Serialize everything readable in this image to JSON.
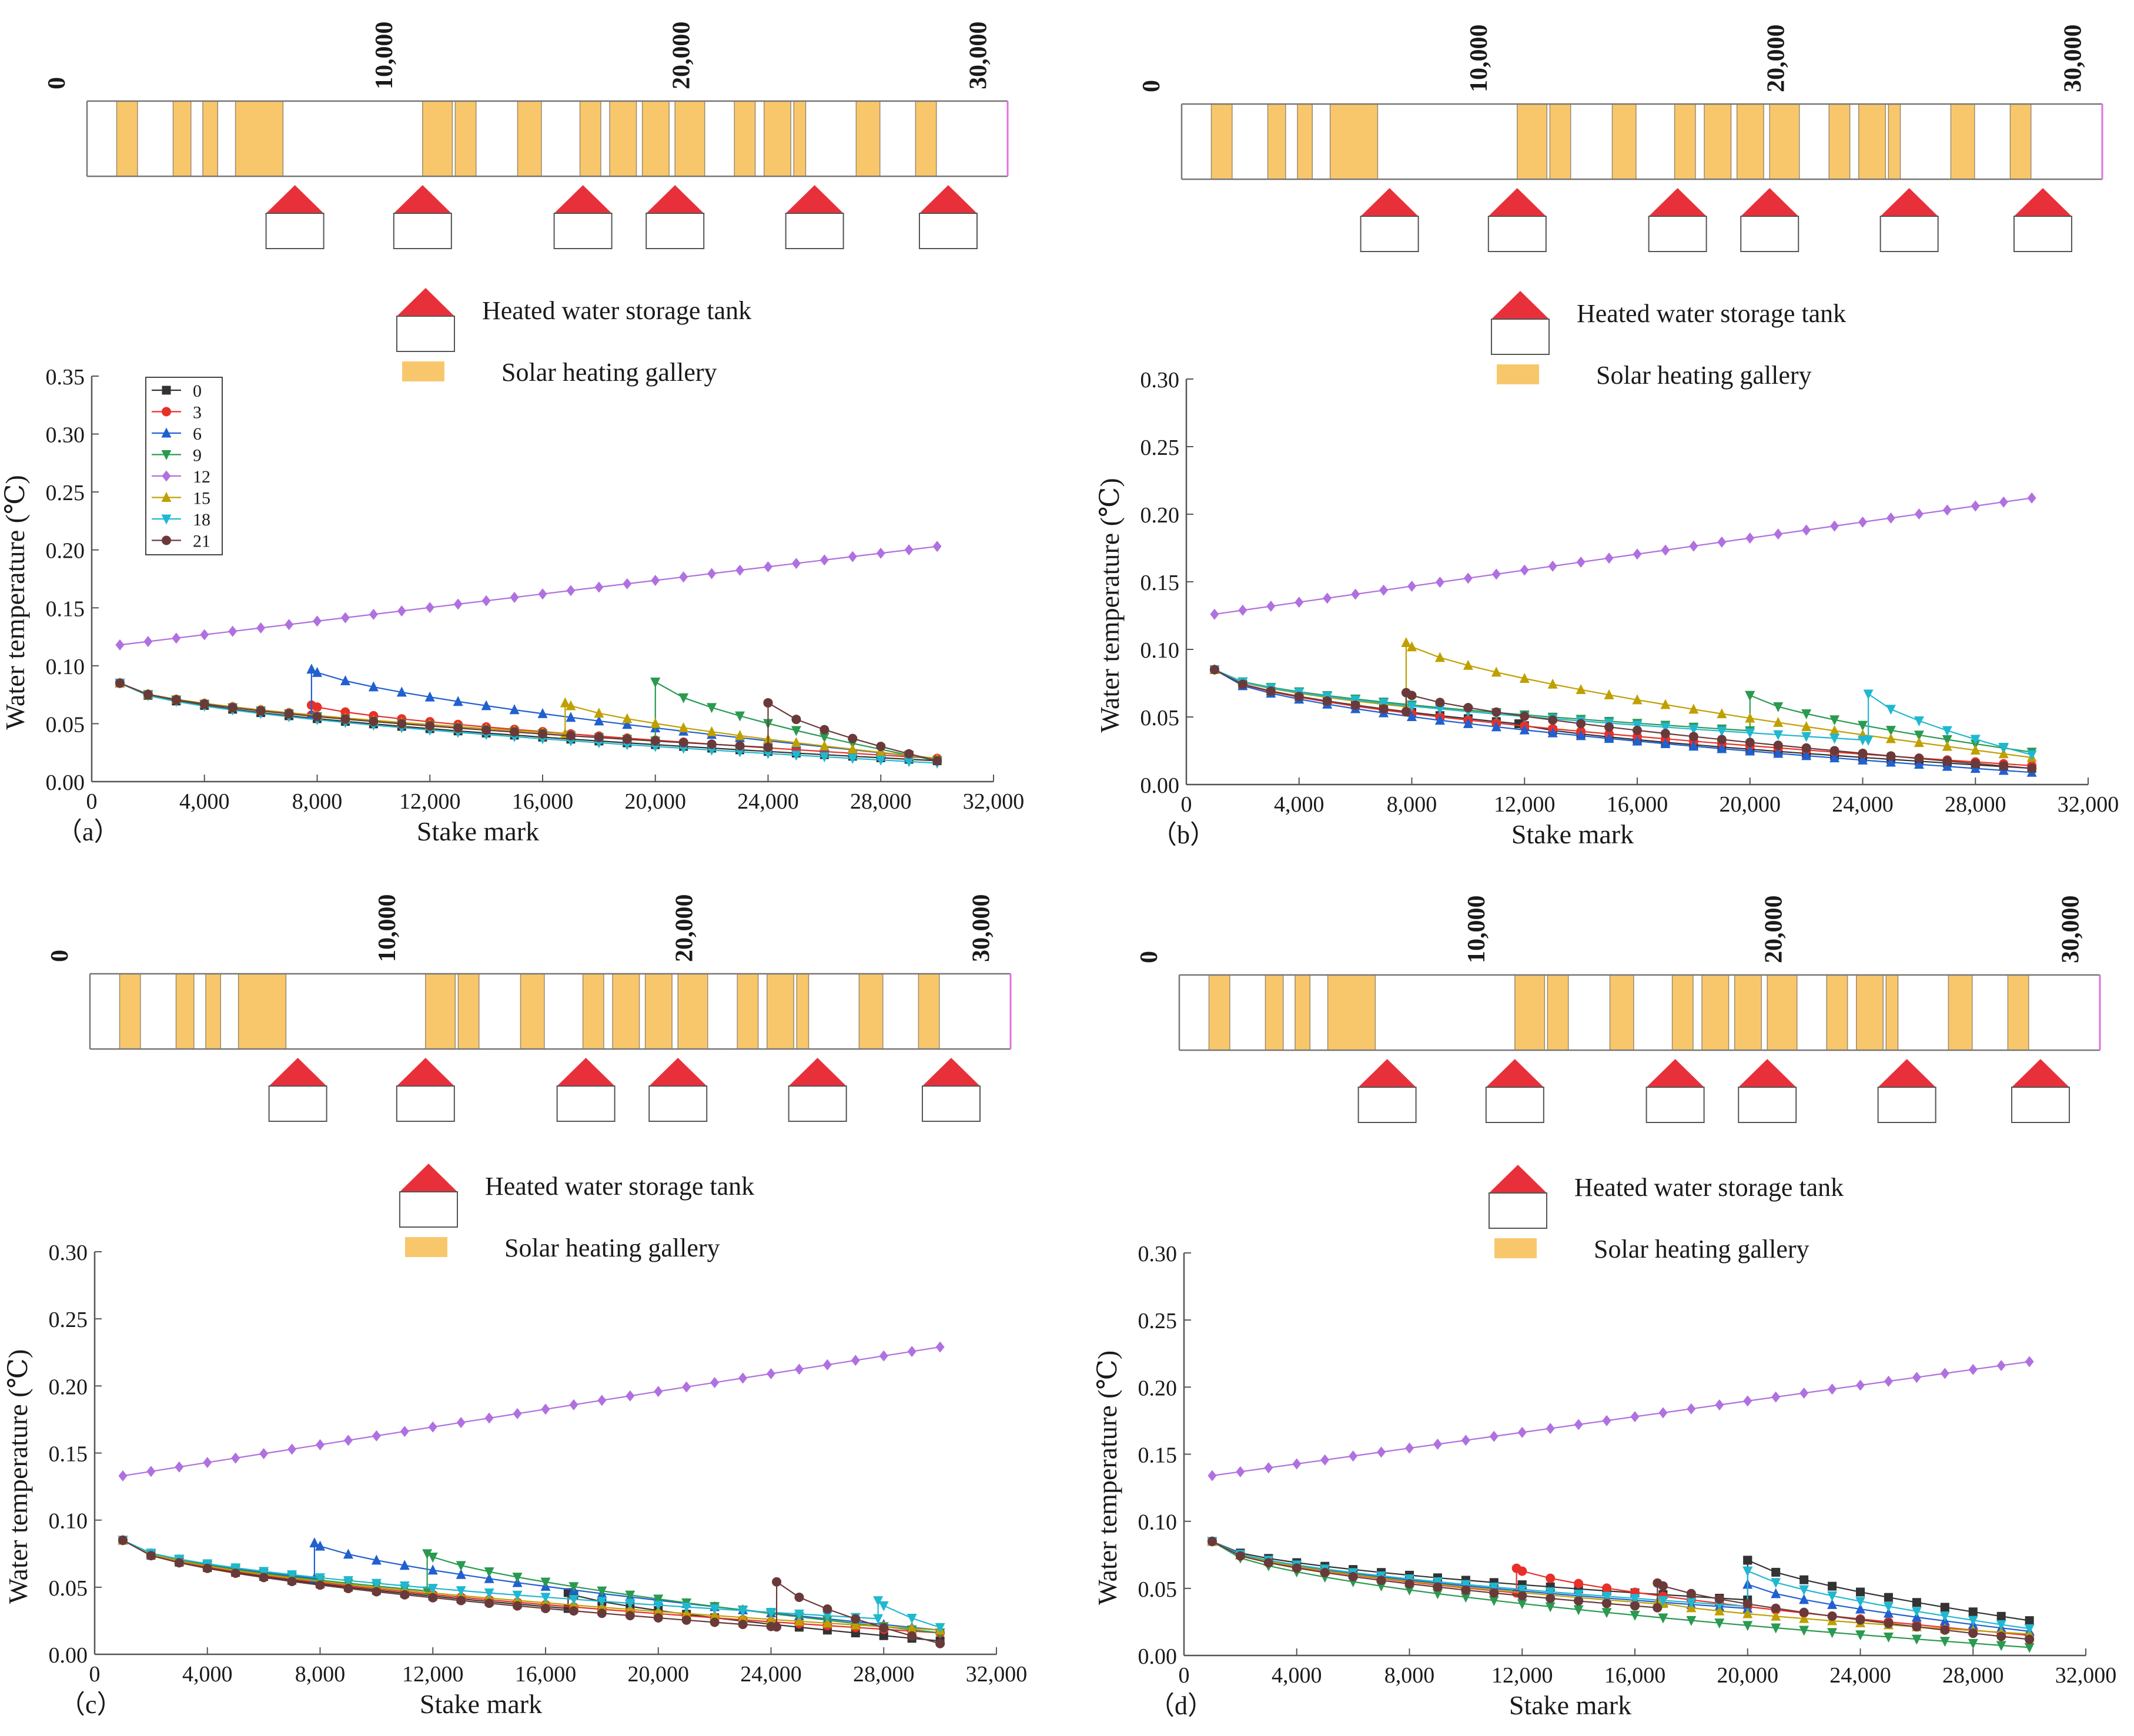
{
  "legend_labels": {
    "tank": "Heated water storage tank",
    "gallery": "Solar heating gallery"
  },
  "colors": {
    "gallery": "#f9c76b",
    "tank_roof": "#e8303a",
    "strip_end": "#e070e0",
    "axis": "#555555"
  },
  "strip": {
    "ticks": [
      "0",
      "10,000",
      "20,000",
      "30,000"
    ],
    "tick_values": [
      0,
      10000,
      20000,
      30000
    ],
    "range": [
      0,
      31000
    ],
    "galleries": [
      [
        1000,
        1700
      ],
      [
        2900,
        3500
      ],
      [
        3900,
        4400
      ],
      [
        5000,
        6600
      ],
      [
        11300,
        12300
      ],
      [
        12400,
        13100
      ],
      [
        14500,
        15300
      ],
      [
        16600,
        17300
      ],
      [
        17600,
        18500
      ],
      [
        18700,
        19600
      ],
      [
        19800,
        20800
      ],
      [
        21800,
        22500
      ],
      [
        22800,
        23700
      ],
      [
        23800,
        24200
      ],
      [
        25900,
        26700
      ],
      [
        27900,
        28600
      ]
    ],
    "tanks": [
      7000,
      11300,
      16700,
      19800,
      24500,
      29000
    ]
  },
  "panels": [
    {
      "label": "（a）",
      "ylabel": "Water temperature (℃)",
      "xlabel": "Stake mark",
      "ymax": 0.35,
      "yticks": [
        "0.00",
        "0.05",
        "0.10",
        "0.15",
        "0.20",
        "0.25",
        "0.30",
        "0.35"
      ],
      "xticks": [
        "0",
        "4,000",
        "8,000",
        "12,000",
        "16,000",
        "20,000",
        "24,000",
        "28,000",
        "32,000"
      ],
      "legend": [
        "0",
        "3",
        "6",
        "9",
        "12",
        "15",
        "18",
        "21"
      ]
    },
    {
      "label": "（b）",
      "ylabel": "Water temperature (℃)",
      "xlabel": "Stake mark",
      "ymax": 0.3,
      "yticks": [
        "0.00",
        "0.05",
        "0.10",
        "0.15",
        "0.20",
        "0.25",
        "0.30"
      ],
      "xticks": [
        "0",
        "4,000",
        "8,000",
        "12,000",
        "16,000",
        "20,000",
        "24,000",
        "28,000",
        "32,000"
      ]
    },
    {
      "label": "（c）",
      "ylabel": "Water temperature (℃)",
      "xlabel": "Stake mark",
      "ymax": 0.3,
      "yticks": [
        "0.00",
        "0.05",
        "0.10",
        "0.15",
        "0.20",
        "0.25",
        "0.30"
      ],
      "xticks": [
        "0",
        "4,000",
        "8,000",
        "12,000",
        "16,000",
        "20,000",
        "24,000",
        "28,000",
        "32,000"
      ]
    },
    {
      "label": "（d）",
      "ylabel": "Water temperature (℃)",
      "xlabel": "Stake mark",
      "ymax": 0.3,
      "yticks": [
        "0.00",
        "0.05",
        "0.10",
        "0.15",
        "0.20",
        "0.25",
        "0.30"
      ],
      "xticks": [
        "0",
        "4,000",
        "8,000",
        "12,000",
        "16,000",
        "20,000",
        "24,000",
        "28,000",
        "32,000"
      ]
    }
  ],
  "chart_data": [
    {
      "panel": "a",
      "type": "line",
      "xlabel": "Stake mark",
      "ylabel": "Water temperature (℃)",
      "xlim": [
        0,
        32000
      ],
      "ylim": [
        0,
        0.35
      ],
      "series": [
        {
          "name": "0",
          "color": "#333333",
          "marker": "square",
          "heat_x": null,
          "peak": null,
          "start": 0.085,
          "end": 0.014
        },
        {
          "name": "3",
          "color": "#e8302a",
          "marker": "circle",
          "heat_x": 7800,
          "peak": 0.066,
          "start": 0.085,
          "end": 0.02
        },
        {
          "name": "6",
          "color": "#2060d0",
          "marker": "triangle",
          "heat_x": 7800,
          "peak": 0.097,
          "start": 0.085,
          "end": 0.02
        },
        {
          "name": "9",
          "color": "#2a9a50",
          "marker": "tridown",
          "heat_x": 20000,
          "peak": 0.086,
          "start": 0.085,
          "end": 0.018
        },
        {
          "name": "12",
          "color": "#b070e0",
          "marker": "diamond",
          "heat_x": null,
          "peak": null,
          "start": 0.118,
          "end": 0.203,
          "rising": true
        },
        {
          "name": "15",
          "color": "#c0a000",
          "marker": "triangle",
          "heat_x": 16800,
          "peak": 0.068,
          "start": 0.085,
          "end": 0.02
        },
        {
          "name": "18",
          "color": "#20b8d0",
          "marker": "tridown",
          "heat_x": null,
          "peak": null,
          "start": 0.085,
          "end": 0.012
        },
        {
          "name": "21",
          "color": "#6a3a3a",
          "marker": "circle",
          "heat_x": 24000,
          "peak": 0.068,
          "start": 0.085,
          "end": 0.018
        }
      ]
    },
    {
      "panel": "b",
      "type": "line",
      "xlabel": "Stake mark",
      "ylabel": "Water temperature (℃)",
      "xlim": [
        0,
        32000
      ],
      "ylim": [
        0,
        0.3
      ],
      "series": [
        {
          "name": "0",
          "color": "#333333",
          "marker": "square",
          "heat_x": 11800,
          "peak": 0.045,
          "start": 0.085,
          "end": 0.012
        },
        {
          "name": "3",
          "color": "#e8302a",
          "marker": "circle",
          "heat_x": null,
          "peak": null,
          "start": 0.085,
          "end": 0.01
        },
        {
          "name": "6",
          "color": "#2060d0",
          "marker": "triangle",
          "heat_x": null,
          "peak": null,
          "start": 0.085,
          "end": 0.005
        },
        {
          "name": "9",
          "color": "#2a9a50",
          "marker": "tridown",
          "heat_x": 20000,
          "peak": 0.066,
          "start": 0.085,
          "end": 0.024
        },
        {
          "name": "12",
          "color": "#b070e0",
          "marker": "diamond",
          "heat_x": null,
          "peak": null,
          "start": 0.126,
          "end": 0.212,
          "rising": true
        },
        {
          "name": "15",
          "color": "#c0a000",
          "marker": "triangle",
          "heat_x": 7800,
          "peak": 0.105,
          "start": 0.085,
          "end": 0.02
        },
        {
          "name": "18",
          "color": "#20b8d0",
          "marker": "tridown",
          "heat_x": 24200,
          "peak": 0.067,
          "start": 0.085,
          "end": 0.022
        },
        {
          "name": "21",
          "color": "#6a3a3a",
          "marker": "circle",
          "heat_x": 7800,
          "peak": 0.068,
          "start": 0.085,
          "end": 0.012
        }
      ]
    },
    {
      "panel": "c",
      "type": "line",
      "xlabel": "Stake mark",
      "ylabel": "Water temperature (℃)",
      "xlim": [
        0,
        32000
      ],
      "ylim": [
        0,
        0.3
      ],
      "series": [
        {
          "name": "0",
          "color": "#333333",
          "marker": "square",
          "heat_x": 16800,
          "peak": 0.046,
          "start": 0.085,
          "end": 0.01
        },
        {
          "name": "3",
          "color": "#e8302a",
          "marker": "circle",
          "heat_x": null,
          "peak": null,
          "start": 0.085,
          "end": 0.012
        },
        {
          "name": "6",
          "color": "#2060d0",
          "marker": "triangle",
          "heat_x": 7800,
          "peak": 0.083,
          "start": 0.085,
          "end": 0.018
        },
        {
          "name": "9",
          "color": "#2a9a50",
          "marker": "tridown",
          "heat_x": 11800,
          "peak": 0.075,
          "start": 0.085,
          "end": 0.016
        },
        {
          "name": "12",
          "color": "#b070e0",
          "marker": "diamond",
          "heat_x": null,
          "peak": null,
          "start": 0.133,
          "end": 0.229,
          "rising": true
        },
        {
          "name": "15",
          "color": "#c0a000",
          "marker": "triangle",
          "heat_x": null,
          "peak": null,
          "start": 0.085,
          "end": 0.014
        },
        {
          "name": "18",
          "color": "#20b8d0",
          "marker": "tridown",
          "heat_x": 27800,
          "peak": 0.04,
          "start": 0.085,
          "end": 0.02
        },
        {
          "name": "21",
          "color": "#6a3a3a",
          "marker": "circle",
          "heat_x": 24200,
          "peak": 0.054,
          "start": 0.085,
          "end": 0.008
        }
      ]
    },
    {
      "panel": "d",
      "type": "line",
      "xlabel": "Stake mark",
      "ylabel": "Water temperature (℃)",
      "xlim": [
        0,
        32000
      ],
      "ylim": [
        0,
        0.3
      ],
      "series": [
        {
          "name": "0",
          "color": "#333333",
          "marker": "square",
          "heat_x": 20000,
          "peak": 0.071,
          "start": 0.085,
          "end": 0.026
        },
        {
          "name": "3",
          "color": "#e8302a",
          "marker": "circle",
          "heat_x": 11800,
          "peak": 0.065,
          "start": 0.085,
          "end": 0.015
        },
        {
          "name": "6",
          "color": "#2060d0",
          "marker": "triangle",
          "heat_x": 20000,
          "peak": 0.053,
          "start": 0.085,
          "end": 0.018
        },
        {
          "name": "9",
          "color": "#2a9a50",
          "marker": "tridown",
          "heat_x": null,
          "peak": null,
          "start": 0.085,
          "end": 0.002
        },
        {
          "name": "12",
          "color": "#b070e0",
          "marker": "diamond",
          "heat_x": null,
          "peak": null,
          "start": 0.134,
          "end": 0.219,
          "rising": true
        },
        {
          "name": "15",
          "color": "#c0a000",
          "marker": "triangle",
          "heat_x": 16800,
          "peak": 0.04,
          "start": 0.085,
          "end": 0.016
        },
        {
          "name": "18",
          "color": "#20b8d0",
          "marker": "tridown",
          "heat_x": 20000,
          "peak": 0.063,
          "start": 0.085,
          "end": 0.02
        },
        {
          "name": "21",
          "color": "#6a3a3a",
          "marker": "circle",
          "heat_x": 16800,
          "peak": 0.054,
          "start": 0.085,
          "end": 0.012
        }
      ]
    }
  ]
}
